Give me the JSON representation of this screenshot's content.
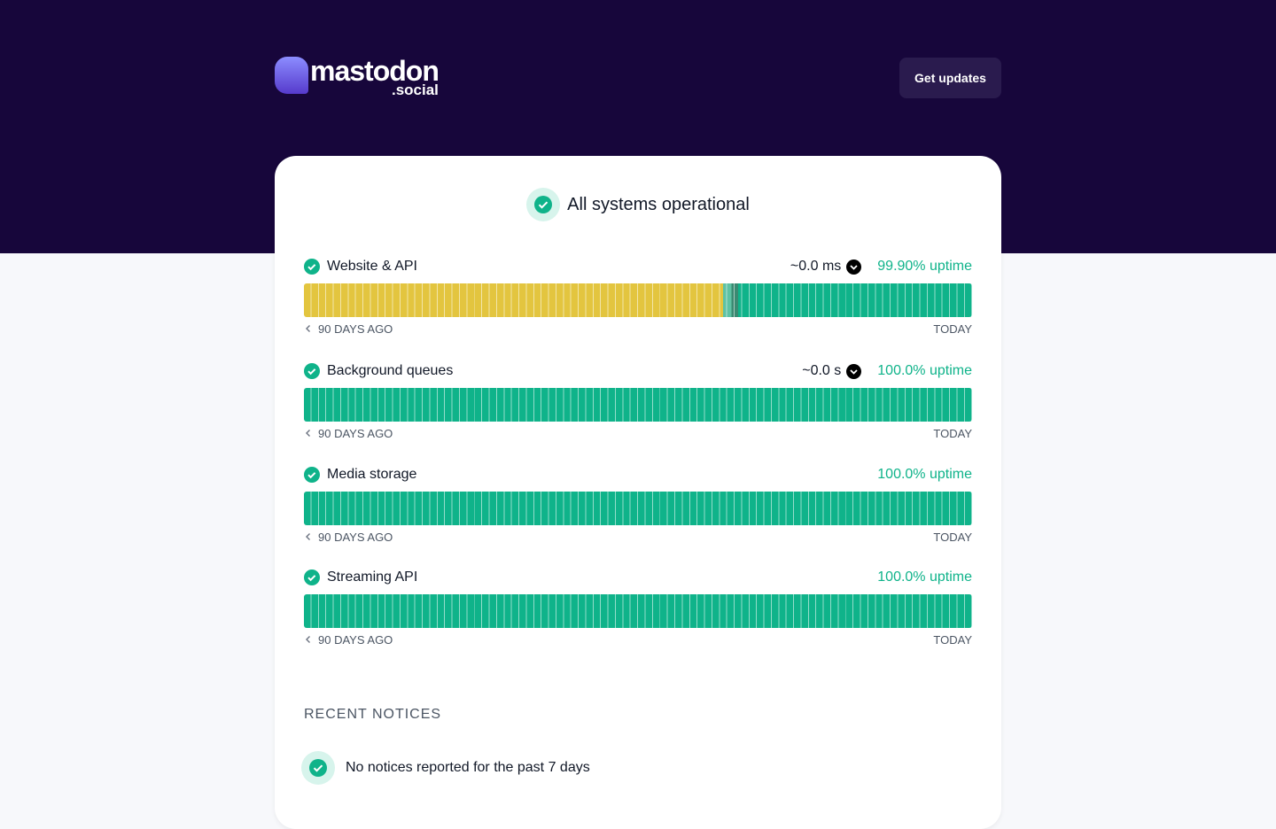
{
  "header": {
    "logo_text": "mastodon",
    "logo_suffix": ".social",
    "button": "Get updates"
  },
  "status": {
    "title": "All systems operational"
  },
  "monitors": [
    {
      "name": "Website & API",
      "response": "~0.0 ms",
      "uptime": "99.90% uptime",
      "start": "90 DAYS AGO",
      "end": "TODAY"
    },
    {
      "name": "Background queues",
      "response": "~0.0 s",
      "uptime": "100.0% uptime",
      "start": "90 DAYS AGO",
      "end": "TODAY"
    },
    {
      "name": "Media storage",
      "uptime": "100.0% uptime",
      "start": "90 DAYS AGO",
      "end": "TODAY"
    },
    {
      "name": "Streaming API",
      "uptime": "100.0% uptime",
      "start": "90 DAYS AGO",
      "end": "TODAY"
    }
  ],
  "notices": {
    "heading": "RECENT NOTICES",
    "message": "No notices reported for the past 7 days"
  }
}
